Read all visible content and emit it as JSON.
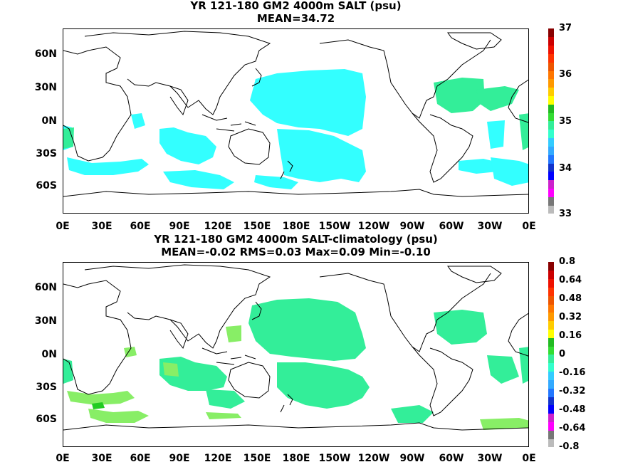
{
  "panels": [
    {
      "title_line1": "YR 121-180 GM2 4000m SALT (psu)",
      "title_line2": "MEAN=34.72",
      "colorbar_labels": [
        "37",
        "36",
        "35",
        "34",
        "33"
      ]
    },
    {
      "title_line1": "YR 121-180 GM2 4000m SALT-climatology (psu)",
      "title_line2": "MEAN=-0.02   RMS=0.03   Max=0.09   Min=-0.10",
      "colorbar_labels": [
        "0.8",
        "0.64",
        "0.48",
        "0.32",
        "0.16",
        "0",
        "-0.16",
        "-0.32",
        "-0.48",
        "-0.64",
        "-0.8"
      ]
    }
  ],
  "lat_labels": [
    "60N",
    "30N",
    "0N",
    "30S",
    "60S"
  ],
  "lon_labels": [
    "0E",
    "30E",
    "60E",
    "90E",
    "120E",
    "150E",
    "180E",
    "150W",
    "120W",
    "90W",
    "60W",
    "30W",
    "0E"
  ],
  "colors": {
    "land_outline": "#000000",
    "panel1_fill": "#33ffff",
    "panel1_fill_atlantic": "#33ee99",
    "panel2_fill": "#33ee99",
    "panel2_fill_light": "#88ee66",
    "panel2_fill_dark": "#22cc22"
  },
  "colorbar_colors": [
    "#bbbbbb",
    "#777777",
    "#ff00ff",
    "#cc22cc",
    "#0000ff",
    "#1133cc",
    "#2277ff",
    "#33aaff",
    "#33ccff",
    "#33ffcc",
    "#33ee99",
    "#33dd33",
    "#22bb22",
    "#ffff00",
    "#ffcc00",
    "#ff9900",
    "#ff7700",
    "#ee5500",
    "#ff3300",
    "#ee1100",
    "#cc0000",
    "#880000"
  ]
}
